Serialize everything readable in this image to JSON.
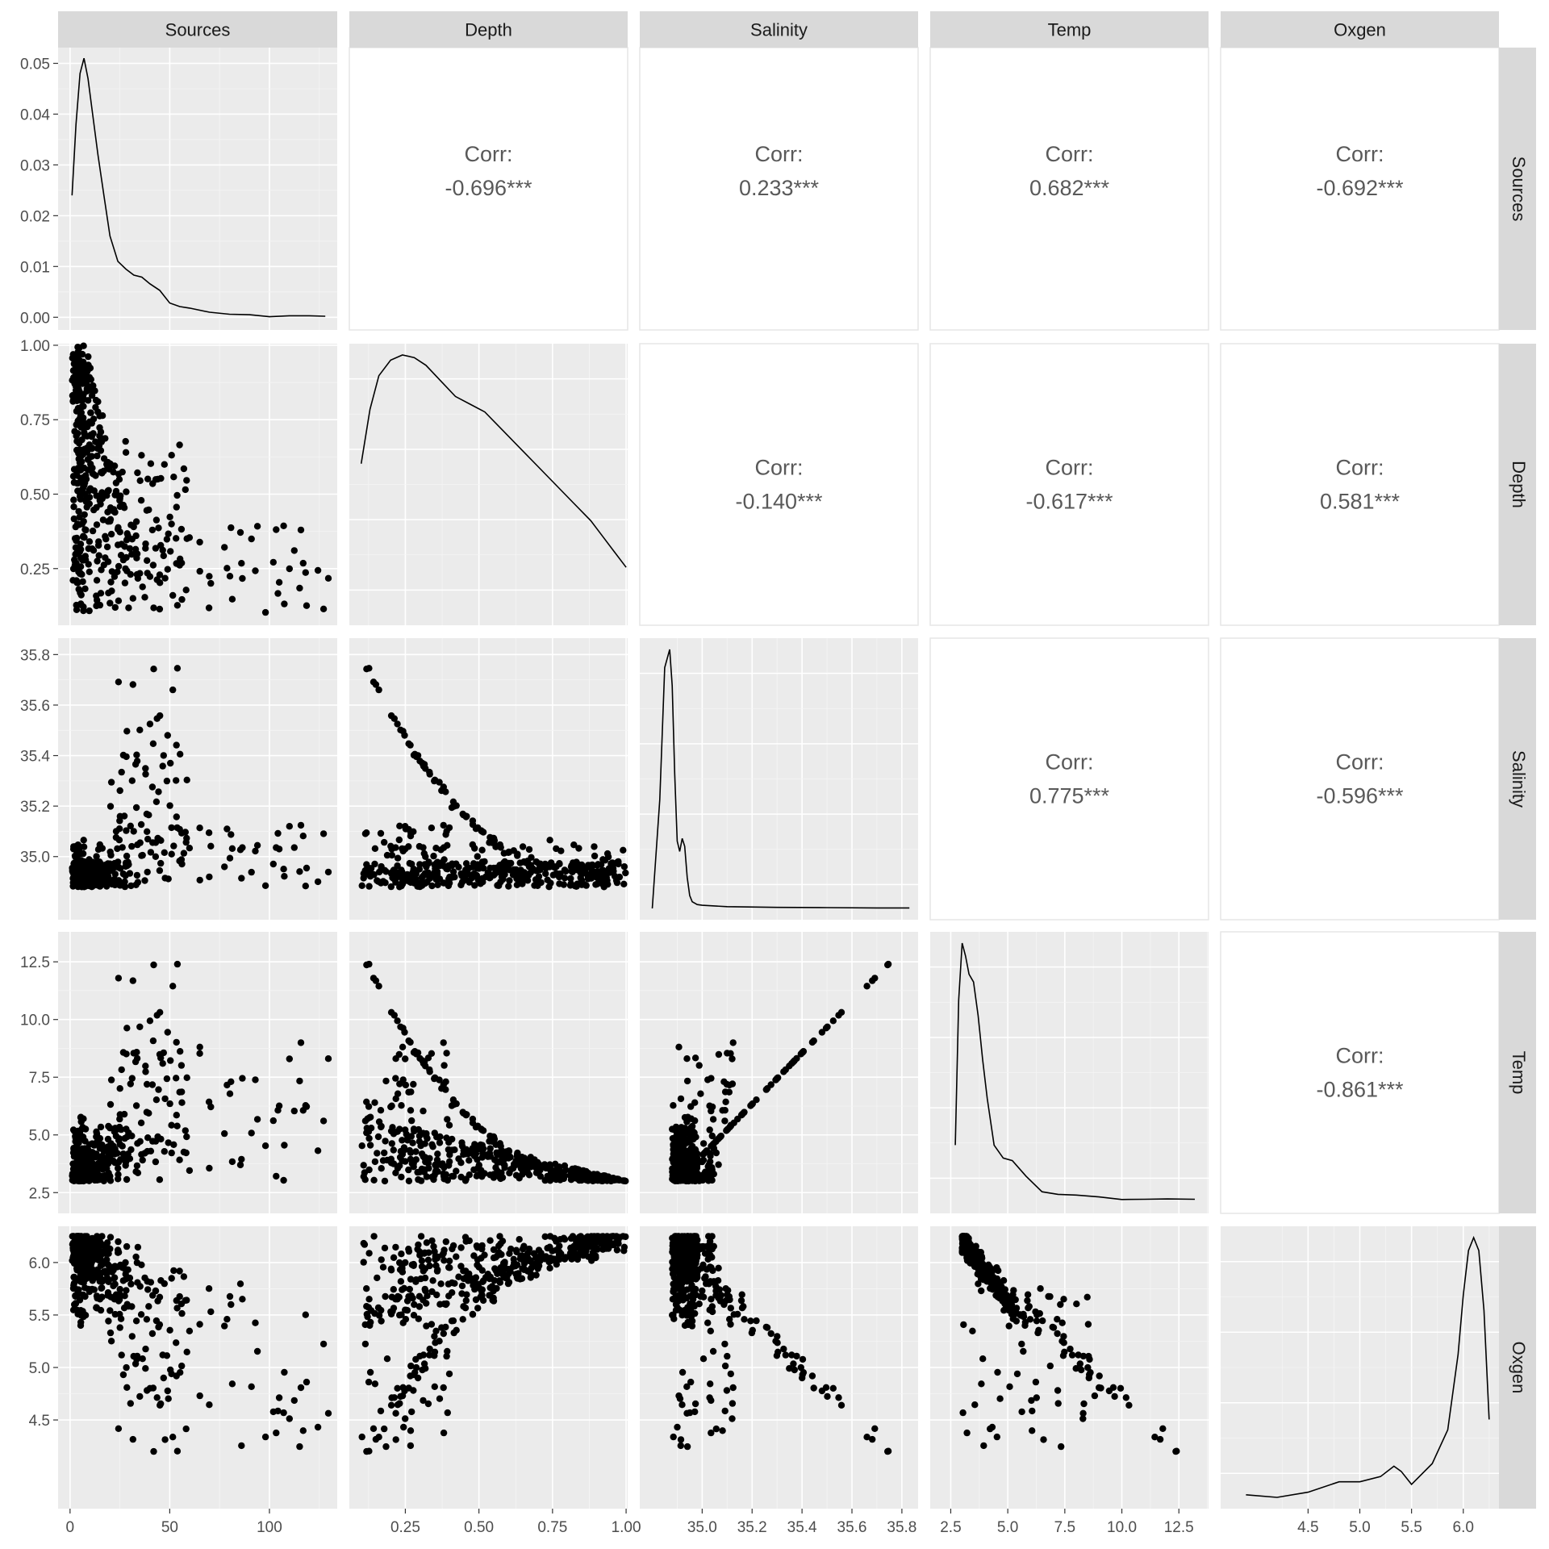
{
  "chart_data": {
    "type": "scatter-matrix",
    "variables": [
      "Sources",
      "Depth",
      "Salinity",
      "Temp",
      "Oxgen"
    ],
    "ranges": {
      "Sources": [
        -6,
        134
      ],
      "Depth": [
        0.0597,
        1.0053
      ],
      "Salinity": [
        34.75,
        35.865
      ],
      "Temp": [
        1.6,
        13.8
      ],
      "Oxgen": [
        3.655,
        6.345
      ]
    },
    "density_ylim": [
      -0.0025,
      0.0531
    ],
    "tick_labels": {
      "Sources": {
        "values": [
          0,
          50,
          100
        ],
        "labels": [
          "0",
          "50",
          "100"
        ]
      },
      "Depth": {
        "values": [
          0.25,
          0.5,
          0.75,
          1.0
        ],
        "labels": [
          "0.25",
          "0.50",
          "0.75",
          "1.00"
        ]
      },
      "Salinity": {
        "values": [
          35.0,
          35.2,
          35.4,
          35.6,
          35.8
        ],
        "labels": [
          "35.0",
          "35.2",
          "35.4",
          "35.6",
          "35.8"
        ]
      },
      "Temp": {
        "values": [
          2.5,
          5.0,
          7.5,
          10.0,
          12.5
        ],
        "labels": [
          "2.5",
          "5.0",
          "7.5",
          "10.0",
          "12.5"
        ]
      },
      "Oxgen": {
        "values": [
          4.5,
          5.0,
          5.5,
          6.0
        ],
        "labels": [
          "4.5",
          "5.0",
          "5.5",
          "6.0"
        ]
      },
      "density_y": {
        "values": [
          0,
          0.01,
          0.02,
          0.03,
          0.04,
          0.05
        ],
        "labels": [
          "0.00",
          "0.01",
          "0.02",
          "0.03",
          "0.04",
          "0.05"
        ]
      }
    },
    "correlations": [
      {
        "row": "Sources",
        "col": "Depth",
        "label": "Corr:",
        "value": "-0.696***"
      },
      {
        "row": "Sources",
        "col": "Salinity",
        "label": "Corr:",
        "value": "0.233***"
      },
      {
        "row": "Sources",
        "col": "Temp",
        "label": "Corr:",
        "value": "0.682***"
      },
      {
        "row": "Sources",
        "col": "Oxgen",
        "label": "Corr:",
        "value": "-0.692***"
      },
      {
        "row": "Depth",
        "col": "Salinity",
        "label": "Corr:",
        "value": "-0.140***"
      },
      {
        "row": "Depth",
        "col": "Temp",
        "label": "Corr:",
        "value": "-0.617***"
      },
      {
        "row": "Depth",
        "col": "Oxgen",
        "label": "Corr:",
        "value": "0.581***"
      },
      {
        "row": "Salinity",
        "col": "Temp",
        "label": "Corr:",
        "value": "0.775***"
      },
      {
        "row": "Salinity",
        "col": "Oxgen",
        "label": "Corr:",
        "value": "-0.596***"
      },
      {
        "row": "Temp",
        "col": "Oxgen",
        "label": "Corr:",
        "value": "-0.861***"
      }
    ],
    "densities": {
      "Sources": {
        "x": [
          1,
          3,
          5,
          7,
          9,
          11,
          14,
          17,
          20,
          24,
          28,
          32,
          36,
          40,
          45,
          50,
          55,
          60,
          70,
          80,
          90,
          100,
          110,
          120,
          128
        ],
        "y": [
          0.024,
          0.038,
          0.048,
          0.051,
          0.047,
          0.041,
          0.032,
          0.024,
          0.016,
          0.011,
          0.0095,
          0.0083,
          0.0079,
          0.0066,
          0.0053,
          0.0028,
          0.0021,
          0.0018,
          0.001,
          0.0006,
          0.0005,
          0.0001,
          0.0003,
          0.0003,
          0.0002
        ]
      },
      "Depth": {
        "x": [
          0.1,
          0.13,
          0.16,
          0.2,
          0.24,
          0.28,
          0.32,
          0.37,
          0.42,
          0.47,
          0.52,
          0.58,
          0.64,
          0.7,
          0.76,
          0.82,
          0.88,
          0.92,
          0.96,
          1.0
        ],
        "y": [
          0.58,
          0.79,
          0.92,
          0.98,
          1.0,
          0.99,
          0.96,
          0.9,
          0.84,
          0.81,
          0.78,
          0.71,
          0.64,
          0.57,
          0.5,
          0.43,
          0.36,
          0.3,
          0.24,
          0.18
        ]
      },
      "Salinity": {
        "x": [
          34.8,
          34.83,
          34.85,
          34.87,
          34.88,
          34.89,
          34.9,
          34.91,
          34.92,
          34.93,
          34.94,
          34.95,
          34.96,
          34.98,
          35.0,
          35.1,
          35.3,
          35.5,
          35.7,
          35.83
        ],
        "y": [
          0.0,
          0.42,
          0.93,
          1.0,
          0.86,
          0.52,
          0.26,
          0.22,
          0.27,
          0.24,
          0.12,
          0.05,
          0.026,
          0.015,
          0.012,
          0.007,
          0.004,
          0.003,
          0.002,
          0.002
        ]
      },
      "Temp": {
        "x": [
          2.7,
          2.85,
          3.0,
          3.15,
          3.3,
          3.5,
          3.7,
          3.9,
          4.1,
          4.4,
          4.8,
          5.2,
          5.8,
          6.5,
          7.2,
          8.0,
          9.0,
          10.0,
          11.0,
          12.0,
          13.2
        ],
        "y": [
          0.22,
          0.78,
          1.0,
          0.95,
          0.88,
          0.85,
          0.72,
          0.55,
          0.4,
          0.22,
          0.17,
          0.16,
          0.1,
          0.04,
          0.03,
          0.027,
          0.02,
          0.01,
          0.011,
          0.012,
          0.011
        ]
      },
      "Oxgen": {
        "x": [
          3.9,
          4.2,
          4.5,
          4.8,
          5.0,
          5.2,
          5.33,
          5.4,
          5.5,
          5.7,
          5.85,
          5.95,
          6.0,
          6.05,
          6.1,
          6.15,
          6.2,
          6.25
        ],
        "y": [
          0.01,
          0.0,
          0.02,
          0.06,
          0.06,
          0.08,
          0.12,
          0.1,
          0.05,
          0.13,
          0.26,
          0.55,
          0.78,
          0.95,
          1.0,
          0.95,
          0.72,
          0.3
        ]
      }
    }
  }
}
